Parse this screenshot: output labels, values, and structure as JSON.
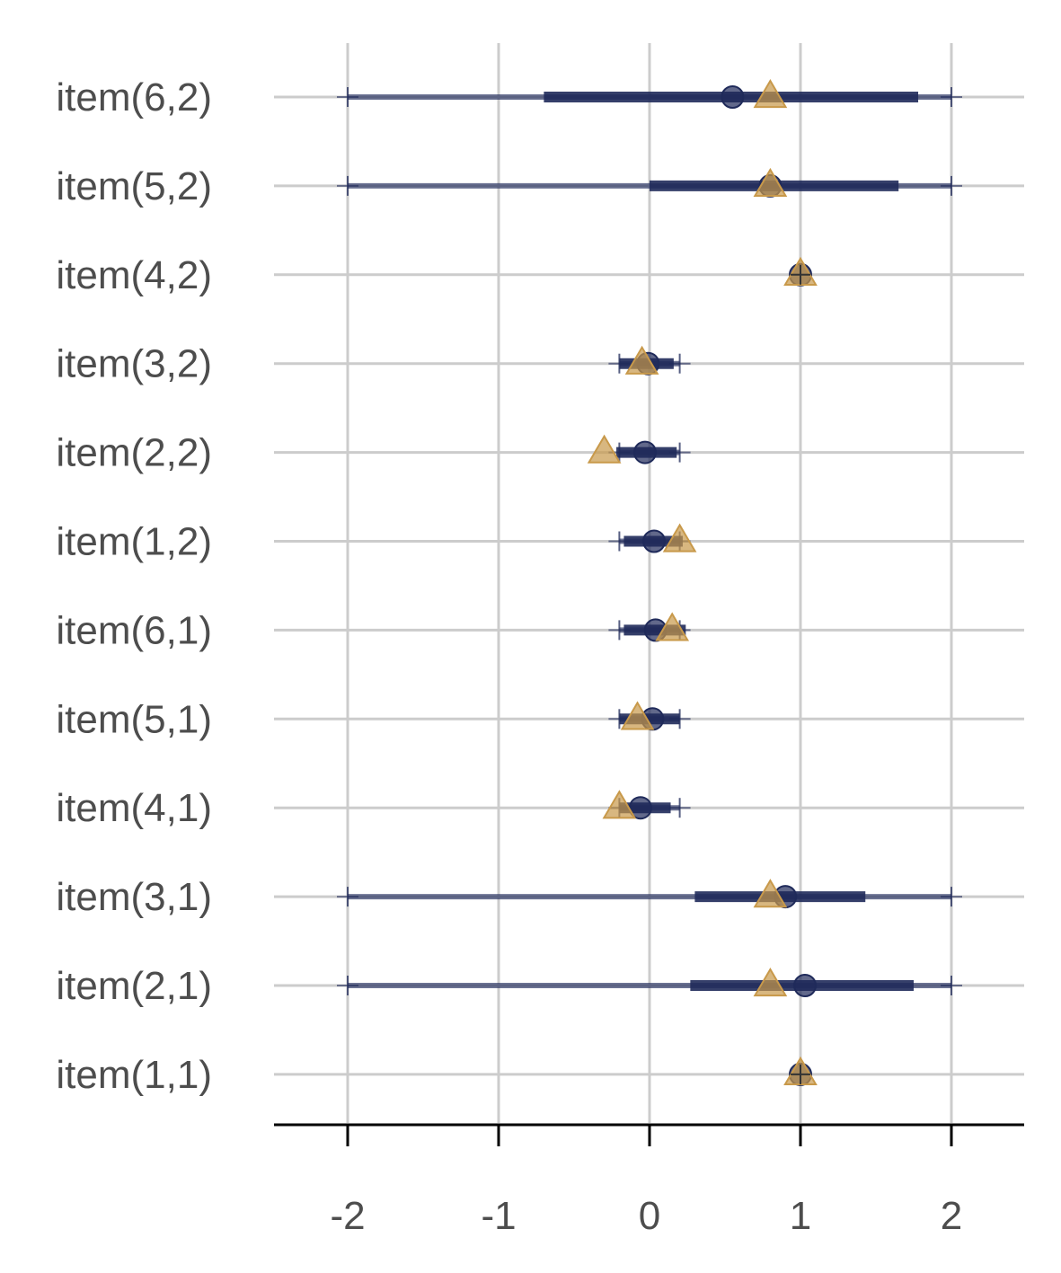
{
  "chart_data": {
    "type": "interval",
    "title": "",
    "xlabel": "",
    "ylabel": "",
    "xlim": [
      -2.5,
      2.5
    ],
    "x_ticks": [
      "-2",
      "-1",
      "0",
      "1",
      "2"
    ],
    "x_tick_values": [
      -2,
      -1,
      0,
      1,
      2
    ],
    "grid": true,
    "legend": "none",
    "colors": {
      "interval": "#1f2a5a",
      "estimate": "#1f2a5a",
      "reference": "#c8994a",
      "grid": "#cccccc"
    },
    "items": [
      {
        "label": "item(6,2)",
        "outer": [
          -2,
          2
        ],
        "inner": [
          -0.7,
          1.78
        ],
        "estimate": 0.55,
        "reference": 0.8
      },
      {
        "label": "item(5,2)",
        "outer": [
          -2,
          2
        ],
        "inner": [
          0.0,
          1.65
        ],
        "estimate": 0.8,
        "reference": 0.8
      },
      {
        "label": "item(4,2)",
        "outer": [
          1,
          1
        ],
        "inner": [
          1,
          1
        ],
        "estimate": 1.0,
        "reference": 1.0
      },
      {
        "label": "item(3,2)",
        "outer": [
          -0.2,
          0.2
        ],
        "inner": [
          -0.2,
          0.16
        ],
        "estimate": -0.01,
        "reference": -0.05
      },
      {
        "label": "item(2,2)",
        "outer": [
          -0.2,
          0.2
        ],
        "inner": [
          -0.22,
          0.18
        ],
        "estimate": -0.03,
        "reference": -0.3
      },
      {
        "label": "item(1,2)",
        "outer": [
          -0.2,
          0.2
        ],
        "inner": [
          -0.17,
          0.22
        ],
        "estimate": 0.03,
        "reference": 0.2
      },
      {
        "label": "item(6,1)",
        "outer": [
          -0.2,
          0.2
        ],
        "inner": [
          -0.17,
          0.24
        ],
        "estimate": 0.04,
        "reference": 0.15
      },
      {
        "label": "item(5,1)",
        "outer": [
          -0.2,
          0.2
        ],
        "inner": [
          -0.2,
          0.2
        ],
        "estimate": 0.02,
        "reference": -0.08
      },
      {
        "label": "item(4,1)",
        "outer": [
          -0.2,
          0.2
        ],
        "inner": [
          -0.2,
          0.14
        ],
        "estimate": -0.06,
        "reference": -0.2
      },
      {
        "label": "item(3,1)",
        "outer": [
          -2,
          2
        ],
        "inner": [
          0.3,
          1.43
        ],
        "estimate": 0.9,
        "reference": 0.8
      },
      {
        "label": "item(2,1)",
        "outer": [
          -2,
          2
        ],
        "inner": [
          0.27,
          1.75
        ],
        "estimate": 1.03,
        "reference": 0.8
      },
      {
        "label": "item(1,1)",
        "outer": [
          1,
          1
        ],
        "inner": [
          1,
          1
        ],
        "estimate": 1.0,
        "reference": 1.0
      }
    ]
  }
}
